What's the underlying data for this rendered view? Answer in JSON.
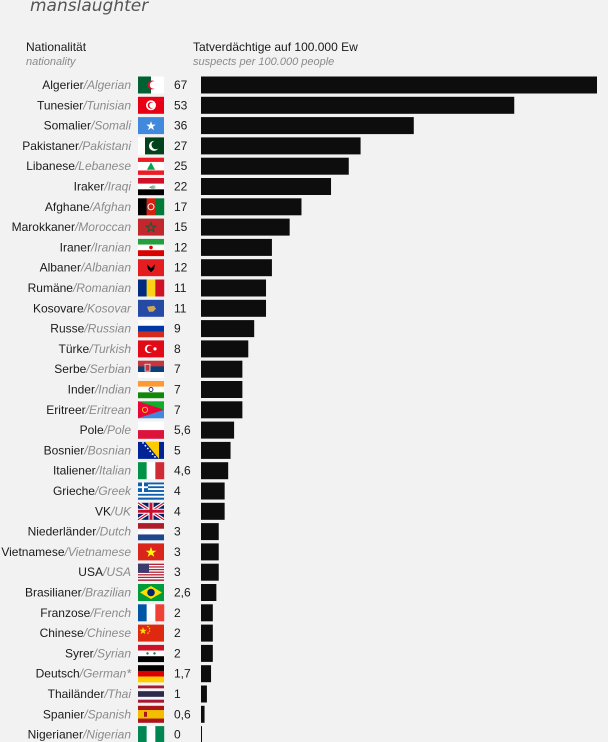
{
  "page_title": "manslaughter",
  "headers": {
    "nationality": "Nationalität",
    "nationality_en": "nationality",
    "value": "Tatverdächtige auf 100.000 Ew",
    "value_en": "suspects per 100.000 people"
  },
  "chart_data": {
    "type": "bar",
    "orientation": "horizontal",
    "title": "manslaughter",
    "xlabel": "Tatverdächtige auf 100.000 Ew / suspects per 100.000 people",
    "ylabel": "Nationalität / nationality",
    "xlim": [
      0,
      67
    ],
    "grid": false,
    "bar_color": "#0d0d0d",
    "categories": [
      {
        "de": "Algerier",
        "en": "Algerian",
        "value": 67,
        "label": "67",
        "flag": "algeria"
      },
      {
        "de": "Tunesier",
        "en": "Tunisian",
        "value": 53,
        "label": "53",
        "flag": "tunisia"
      },
      {
        "de": "Somalier",
        "en": "Somali",
        "value": 36,
        "label": "36",
        "flag": "somalia"
      },
      {
        "de": "Pakistaner",
        "en": "Pakistani",
        "value": 27,
        "label": "27",
        "flag": "pakistan"
      },
      {
        "de": "Libanese",
        "en": "Lebanese",
        "value": 25,
        "label": "25",
        "flag": "lebanon"
      },
      {
        "de": "Iraker",
        "en": "Iraqi",
        "value": 22,
        "label": "22",
        "flag": "iraq"
      },
      {
        "de": "Afghane",
        "en": "Afghan",
        "value": 17,
        "label": "17",
        "flag": "afghanistan"
      },
      {
        "de": "Marokkaner",
        "en": "Moroccan",
        "value": 15,
        "label": "15",
        "flag": "morocco"
      },
      {
        "de": "Iraner",
        "en": "Iranian",
        "value": 12,
        "label": "12",
        "flag": "iran"
      },
      {
        "de": "Albaner",
        "en": "Albanian",
        "value": 12,
        "label": "12",
        "flag": "albania"
      },
      {
        "de": "Rumäne",
        "en": "Romanian",
        "value": 11,
        "label": "11",
        "flag": "romania"
      },
      {
        "de": "Kosovare",
        "en": "Kosovar",
        "value": 11,
        "label": "11",
        "flag": "kosovo"
      },
      {
        "de": "Russe",
        "en": "Russian",
        "value": 9,
        "label": "9",
        "flag": "russia"
      },
      {
        "de": "Türke",
        "en": "Turkish",
        "value": 8,
        "label": "8",
        "flag": "turkey"
      },
      {
        "de": "Serbe",
        "en": "Serbian",
        "value": 7,
        "label": "7",
        "flag": "serbia"
      },
      {
        "de": "Inder",
        "en": "Indian",
        "value": 7,
        "label": "7",
        "flag": "india"
      },
      {
        "de": "Eritreer",
        "en": "Eritrean",
        "value": 7,
        "label": "7",
        "flag": "eritrea"
      },
      {
        "de": "Pole",
        "en": "Pole",
        "value": 5.6,
        "label": "5,6",
        "flag": "poland"
      },
      {
        "de": "Bosnier",
        "en": "Bosnian",
        "value": 5,
        "label": "5",
        "flag": "bosnia"
      },
      {
        "de": "Italiener",
        "en": "Italian",
        "value": 4.6,
        "label": "4,6",
        "flag": "italy"
      },
      {
        "de": "Grieche",
        "en": "Greek",
        "value": 4,
        "label": "4",
        "flag": "greece"
      },
      {
        "de": "VK",
        "en": "UK",
        "value": 4,
        "label": "4",
        "flag": "uk"
      },
      {
        "de": "Niederländer",
        "en": "Dutch",
        "value": 3,
        "label": "3",
        "flag": "netherlands"
      },
      {
        "de": "Vietnamese",
        "en": "Vietnamese",
        "value": 3,
        "label": "3",
        "flag": "vietnam"
      },
      {
        "de": "USA",
        "en": "USA",
        "value": 3,
        "label": "3",
        "flag": "usa"
      },
      {
        "de": "Brasilianer",
        "en": "Brazilian",
        "value": 2.6,
        "label": "2,6",
        "flag": "brazil"
      },
      {
        "de": "Franzose",
        "en": "French",
        "value": 2,
        "label": "2",
        "flag": "france"
      },
      {
        "de": "Chinese",
        "en": "Chinese",
        "value": 2,
        "label": "2",
        "flag": "china"
      },
      {
        "de": "Syrer",
        "en": "Syrian",
        "value": 2,
        "label": "2",
        "flag": "syria"
      },
      {
        "de": "Deutsch",
        "en": "German*",
        "value": 1.7,
        "label": "1,7",
        "flag": "germany"
      },
      {
        "de": "Thailänder",
        "en": "Thai",
        "value": 1,
        "label": "1",
        "flag": "thailand"
      },
      {
        "de": "Spanier",
        "en": "Spanish",
        "value": 0.6,
        "label": "0,6",
        "flag": "spain"
      },
      {
        "de": "Nigerianer",
        "en": "Nigerian",
        "value": 0,
        "label": "0",
        "flag": "nigeria"
      }
    ]
  }
}
